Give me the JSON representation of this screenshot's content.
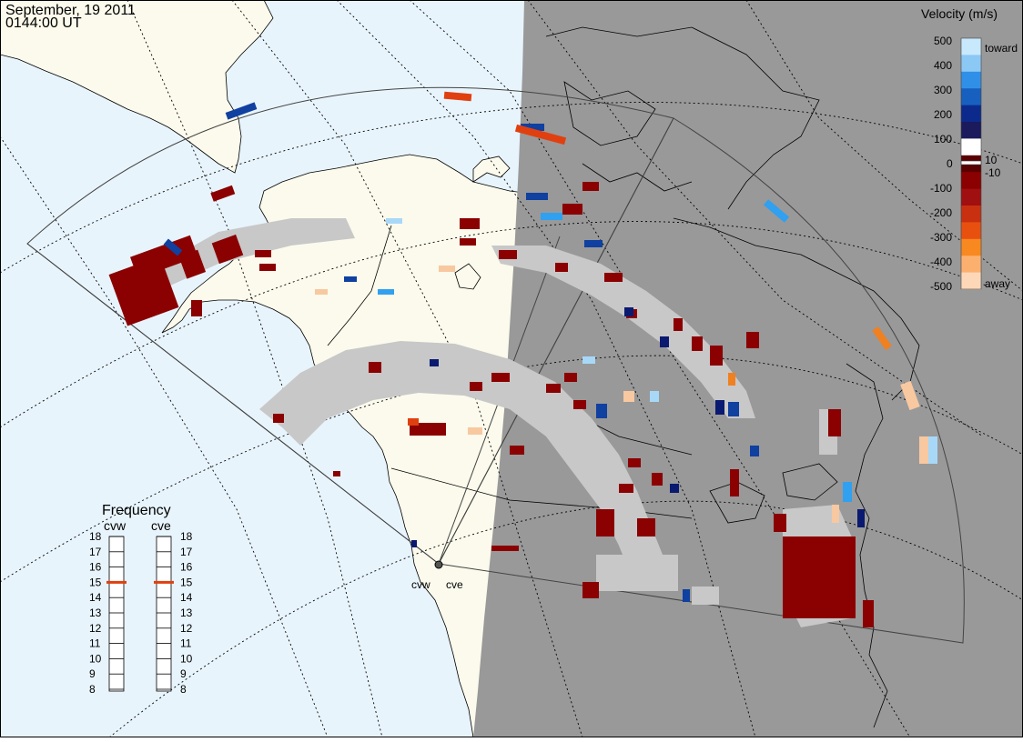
{
  "header": {
    "date": "September, 19 2011",
    "time": "0144:00 UT"
  },
  "colors": {
    "ocean": "#e8f4fc",
    "land": "#fbfaec",
    "night": "#999999",
    "ground_scatter": "#c8c8c8",
    "frequency_marker": "#e04010"
  },
  "velocity_scale": {
    "title": "Velocity (m/s)",
    "ticks": [
      "500",
      "400",
      "300",
      "200",
      "100",
      "10",
      "0",
      "-10",
      "-100",
      "-200",
      "-300",
      "-400",
      "-500"
    ],
    "top_label": "toward",
    "bottom_label": "away"
  },
  "frequency_panel": {
    "title": "Frequency",
    "radars": [
      {
        "label": "cvw",
        "current_mhz": 15
      },
      {
        "label": "cve",
        "current_mhz": 15
      }
    ],
    "ticks": [
      "18",
      "17",
      "16",
      "15",
      "14",
      "13",
      "12",
      "11",
      "10",
      "9",
      "8"
    ],
    "min": 8,
    "max": 18
  },
  "radar_sites": [
    {
      "label": "cvw"
    },
    {
      "label": "cve"
    }
  ]
}
